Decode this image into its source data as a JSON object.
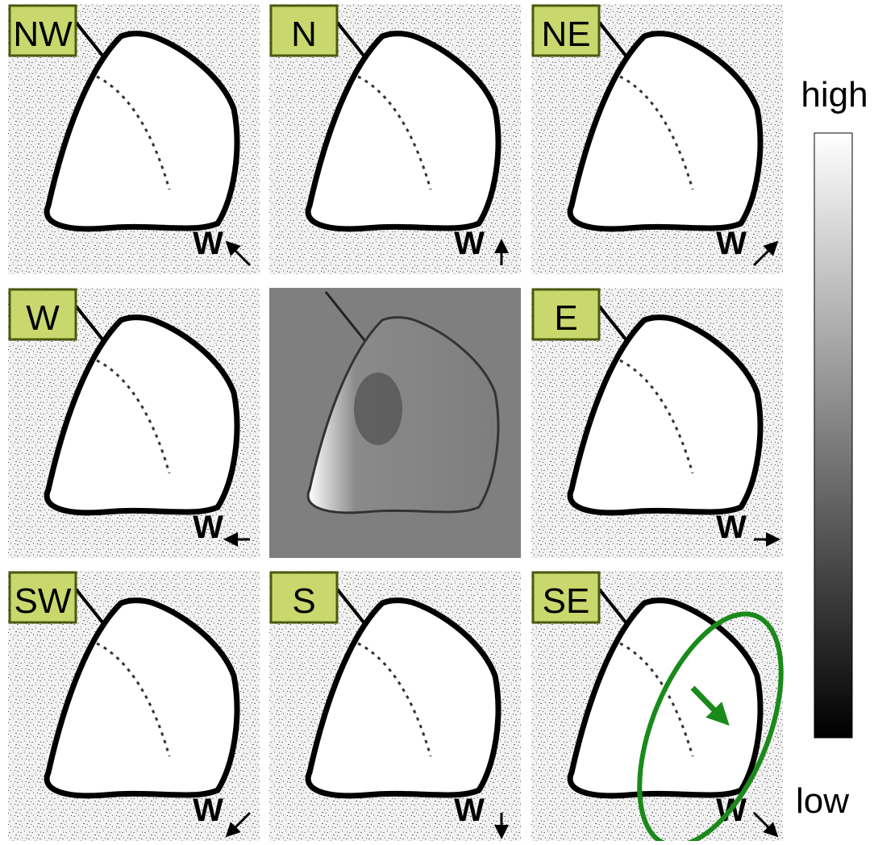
{
  "panels": [
    {
      "label": "NW",
      "marker": "W"
    },
    {
      "label": "N",
      "marker": "W"
    },
    {
      "label": "NE",
      "marker": "W"
    },
    {
      "label": "W",
      "marker": "W"
    },
    {
      "label": "E",
      "marker": "W"
    },
    {
      "label": "SW",
      "marker": "W"
    },
    {
      "label": "S",
      "marker": "W"
    },
    {
      "label": "SE",
      "marker": "W"
    }
  ],
  "colorbar": {
    "top_label": "high",
    "bottom_label": "low"
  }
}
